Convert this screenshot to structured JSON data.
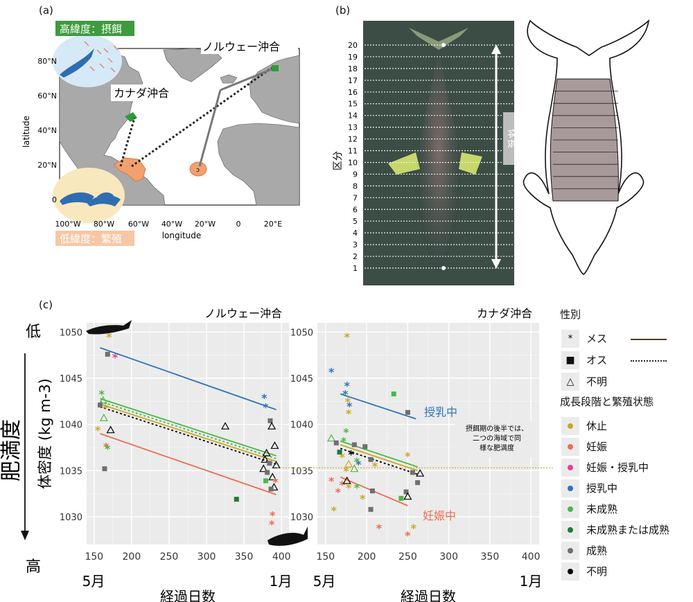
{
  "panel_labels": {
    "a": "(a)",
    "b": "(b)",
    "c": "(c)"
  },
  "map": {
    "high_lat_label": "高緯度：摂餌",
    "low_lat_label": "低緯度：繁殖",
    "norway_label": "ノルウェー沖合",
    "canada_label": "カナダ沖合",
    "ylabel": "latitude",
    "xlabel": "longitude",
    "lat_ticks": [
      "80°N",
      "60°N",
      "40°N",
      "20°N",
      "0"
    ],
    "lon_ticks": [
      "100°W",
      "80°W",
      "60°W",
      "40°W",
      "20°W",
      "0",
      "20°E"
    ],
    "colors": {
      "ocean": "#ffffff",
      "land": "#a9a9a9",
      "feeding": "#2e9b3a",
      "breeding": "#f1a070"
    }
  },
  "photo": {
    "section_label": "区分",
    "segments": [
      "1",
      "2",
      "3",
      "4",
      "5",
      "6",
      "7",
      "8",
      "9",
      "10",
      "11",
      "12",
      "13",
      "14",
      "15",
      "16",
      "17",
      "18",
      "19",
      "20"
    ],
    "body_length_label": "体長"
  },
  "chart_data": [
    {
      "type": "scatter",
      "title": "ノルウェー沖合",
      "xlabel": "経過日数",
      "ylabel": "体密度 (kg m-3)",
      "xlim": [
        140,
        410
      ],
      "ylim": [
        1027,
        1051
      ],
      "xticks": [
        150,
        200,
        250,
        300,
        350,
        400
      ],
      "yticks": [
        1030,
        1035,
        1040,
        1045,
        1050
      ],
      "month_labels": {
        "start": "5月",
        "end": "1月"
      },
      "grid": true,
      "lines": [
        {
          "group": "授乳中",
          "sex": "メス",
          "x": [
            158,
            393
          ],
          "y": [
            1048.3,
            1041.6
          ]
        },
        {
          "group": "未成熟",
          "sex": "メス",
          "x": [
            158,
            393
          ],
          "y": [
            1042.8,
            1036.6
          ]
        },
        {
          "group": "未成熟",
          "sex": "オス",
          "x": [
            158,
            393
          ],
          "y": [
            1042.5,
            1036.3
          ]
        },
        {
          "group": "休止",
          "sex": "メス",
          "x": [
            158,
            393
          ],
          "y": [
            1042.2,
            1036.0
          ]
        },
        {
          "group": "不明",
          "sex": "オス",
          "x": [
            158,
            393
          ],
          "y": [
            1041.9,
            1035.7
          ]
        },
        {
          "group": "妊娠",
          "sex": "メス",
          "x": [
            158,
            393
          ],
          "y": [
            1039.0,
            1032.4
          ]
        }
      ],
      "points": [
        {
          "x": 170,
          "y": 1049.5,
          "group": "休止",
          "shape": "メス"
        },
        {
          "x": 168,
          "y": 1047.6,
          "group": "成熟",
          "shape": "オス"
        },
        {
          "x": 178,
          "y": 1047.3,
          "group": "妊娠・授乳中",
          "shape": "メス"
        },
        {
          "x": 160,
          "y": 1043.3,
          "group": "未成熟",
          "shape": "メス"
        },
        {
          "x": 162,
          "y": 1042.6,
          "group": "未成熟",
          "shape": "不明"
        },
        {
          "x": 158,
          "y": 1042.1,
          "group": "成熟",
          "shape": "オス"
        },
        {
          "x": 165,
          "y": 1041.8,
          "group": "休止",
          "shape": "メス"
        },
        {
          "x": 163,
          "y": 1040.7,
          "group": "未成熟",
          "shape": "不明"
        },
        {
          "x": 155,
          "y": 1039.4,
          "group": "休止",
          "shape": "メス"
        },
        {
          "x": 172,
          "y": 1039.4,
          "group": "不明",
          "shape": "不明"
        },
        {
          "x": 166,
          "y": 1037.6,
          "group": "妊娠",
          "shape": "メス"
        },
        {
          "x": 168,
          "y": 1037.4,
          "group": "未成熟",
          "shape": "メス"
        },
        {
          "x": 164,
          "y": 1035.2,
          "group": "成熟",
          "shape": "オス"
        },
        {
          "x": 325,
          "y": 1039.8,
          "group": "不明",
          "shape": "不明"
        },
        {
          "x": 340,
          "y": 1031.9,
          "group": "未成熟または成熟",
          "shape": "オス"
        },
        {
          "x": 377,
          "y": 1042.9,
          "group": "授乳中",
          "shape": "メス"
        },
        {
          "x": 379,
          "y": 1041.9,
          "group": "授乳中",
          "shape": "メス"
        },
        {
          "x": 385,
          "y": 1040.4,
          "group": "成熟",
          "shape": "オス"
        },
        {
          "x": 387,
          "y": 1039.8,
          "group": "不明",
          "shape": "不明"
        },
        {
          "x": 391,
          "y": 1037.7,
          "group": "不明",
          "shape": "不明"
        },
        {
          "x": 380,
          "y": 1036.9,
          "group": "不明",
          "shape": "不明"
        },
        {
          "x": 378,
          "y": 1036.2,
          "group": "不明",
          "shape": "不明"
        },
        {
          "x": 384,
          "y": 1035.8,
          "group": "成熟",
          "shape": "オス"
        },
        {
          "x": 393,
          "y": 1035.6,
          "group": "不明",
          "shape": "不明"
        },
        {
          "x": 376,
          "y": 1035.2,
          "group": "不明",
          "shape": "不明"
        },
        {
          "x": 381,
          "y": 1034.8,
          "group": "成熟",
          "shape": "オス"
        },
        {
          "x": 388,
          "y": 1034.3,
          "group": "不明",
          "shape": "不明"
        },
        {
          "x": 392,
          "y": 1033.8,
          "group": "妊娠",
          "shape": "メス"
        },
        {
          "x": 379,
          "y": 1033.9,
          "group": "未成熟",
          "shape": "オス"
        },
        {
          "x": 390,
          "y": 1033.2,
          "group": "不明",
          "shape": "不明"
        },
        {
          "x": 386,
          "y": 1033.0,
          "group": "成熟",
          "shape": "オス"
        },
        {
          "x": 388,
          "y": 1030.2,
          "group": "妊娠",
          "shape": "メス"
        },
        {
          "x": 387,
          "y": 1029.2,
          "group": "妊娠",
          "shape": "メス"
        }
      ]
    },
    {
      "type": "scatter",
      "title": "カナダ沖合",
      "xlabel": "経過日数",
      "xlim": [
        140,
        410
      ],
      "ylim": [
        1027,
        1051
      ],
      "xticks": [
        150,
        200,
        250,
        300,
        350,
        400
      ],
      "yticks": [
        1030,
        1035,
        1040,
        1045,
        1050
      ],
      "month_labels": {
        "start": "5月",
        "end": "1月"
      },
      "grid": true,
      "lines": [
        {
          "group": "授乳中",
          "sex": "メス",
          "x": [
            168,
            260
          ],
          "y": [
            1043.3,
            1040.6
          ]
        },
        {
          "group": "未成熟",
          "sex": "メス",
          "x": [
            168,
            262
          ],
          "y": [
            1038.2,
            1035.4
          ]
        },
        {
          "group": "休止",
          "sex": "メス",
          "x": [
            168,
            262
          ],
          "y": [
            1037.8,
            1035.0
          ]
        },
        {
          "group": "不明",
          "sex": "オス",
          "x": [
            168,
            262
          ],
          "y": [
            1037.4,
            1034.6
          ]
        },
        {
          "group": "妊娠",
          "sex": "メス",
          "x": [
            168,
            250
          ],
          "y": [
            1034.3,
            1031.2
          ]
        }
      ],
      "labels": [
        {
          "text": "授乳中",
          "group": "授乳中"
        },
        {
          "text": "妊娠中",
          "group": "妊娠"
        }
      ],
      "annotation": "摂餌期の後半では、二つの海域で同様な肥満度",
      "points": [
        {
          "x": 176,
          "y": 1049.5,
          "group": "休止",
          "shape": "メス"
        },
        {
          "x": 157,
          "y": 1045.7,
          "group": "授乳中",
          "shape": "メス"
        },
        {
          "x": 176,
          "y": 1044.2,
          "group": "授乳中",
          "shape": "メス"
        },
        {
          "x": 174,
          "y": 1043.3,
          "group": "授乳中",
          "shape": "メス"
        },
        {
          "x": 233,
          "y": 1043.3,
          "group": "未成熟",
          "shape": "オス"
        },
        {
          "x": 177,
          "y": 1042.5,
          "group": "休止",
          "shape": "メス"
        },
        {
          "x": 179,
          "y": 1042.0,
          "group": "授乳中",
          "shape": "メス"
        },
        {
          "x": 178,
          "y": 1041.2,
          "group": "休止",
          "shape": "メス"
        },
        {
          "x": 250,
          "y": 1041.3,
          "group": "成熟",
          "shape": "オス"
        },
        {
          "x": 175,
          "y": 1039.2,
          "group": "未成熟",
          "shape": "メス"
        },
        {
          "x": 157,
          "y": 1038.5,
          "group": "未成熟",
          "shape": "不明"
        },
        {
          "x": 163,
          "y": 1038.0,
          "group": "成熟",
          "shape": "オス"
        },
        {
          "x": 172,
          "y": 1038.2,
          "group": "未成熟",
          "shape": "メス"
        },
        {
          "x": 185,
          "y": 1037.8,
          "group": "成熟",
          "shape": "オス"
        },
        {
          "x": 198,
          "y": 1037.6,
          "group": "成熟",
          "shape": "オス"
        },
        {
          "x": 167,
          "y": 1037.0,
          "group": "未成熟または成熟",
          "shape": "オス"
        },
        {
          "x": 181,
          "y": 1036.8,
          "group": "不明",
          "shape": "メス"
        },
        {
          "x": 170,
          "y": 1036.5,
          "group": "休止",
          "shape": "メス"
        },
        {
          "x": 188,
          "y": 1036.0,
          "group": "未成熟",
          "shape": "メス"
        },
        {
          "x": 205,
          "y": 1036.2,
          "group": "成熟",
          "shape": "オス"
        },
        {
          "x": 250,
          "y": 1036.6,
          "group": "休止",
          "shape": "メス"
        },
        {
          "x": 178,
          "y": 1035.7,
          "group": "休止",
          "shape": "不明"
        },
        {
          "x": 190,
          "y": 1035.7,
          "group": "授乳中",
          "shape": "メス"
        },
        {
          "x": 210,
          "y": 1035.5,
          "group": "休止",
          "shape": "メス"
        },
        {
          "x": 175,
          "y": 1035.0,
          "group": "休止",
          "shape": "メス"
        },
        {
          "x": 185,
          "y": 1035.2,
          "group": "未成熟",
          "shape": "不明"
        },
        {
          "x": 256,
          "y": 1034.8,
          "group": "成熟",
          "shape": "オス"
        },
        {
          "x": 265,
          "y": 1034.7,
          "group": "不明",
          "shape": "不明"
        },
        {
          "x": 157,
          "y": 1033.9,
          "group": "妊娠",
          "shape": "メス"
        },
        {
          "x": 170,
          "y": 1033.5,
          "group": "妊娠",
          "shape": "メス"
        },
        {
          "x": 176,
          "y": 1033.9,
          "group": "不明",
          "shape": "不明"
        },
        {
          "x": 262,
          "y": 1033.7,
          "group": "成熟",
          "shape": "オス"
        },
        {
          "x": 178,
          "y": 1033.2,
          "group": "休止",
          "shape": "メス"
        },
        {
          "x": 188,
          "y": 1033.2,
          "group": "未成熟",
          "shape": "メス"
        },
        {
          "x": 165,
          "y": 1032.7,
          "group": "妊娠",
          "shape": "メス"
        },
        {
          "x": 207,
          "y": 1032.8,
          "group": "成熟",
          "shape": "オス"
        },
        {
          "x": 248,
          "y": 1032.7,
          "group": "成熟",
          "shape": "オス"
        },
        {
          "x": 242,
          "y": 1032.0,
          "group": "未成熟",
          "shape": "オス"
        },
        {
          "x": 250,
          "y": 1032.2,
          "group": "不明",
          "shape": "不明"
        },
        {
          "x": 195,
          "y": 1032.0,
          "group": "休止",
          "shape": "メス"
        },
        {
          "x": 160,
          "y": 1030.7,
          "group": "休止",
          "shape": "メス"
        },
        {
          "x": 205,
          "y": 1030.8,
          "group": "成熟",
          "shape": "オス"
        },
        {
          "x": 215,
          "y": 1028.8,
          "group": "妊娠",
          "shape": "メス"
        },
        {
          "x": 257,
          "y": 1028.8,
          "group": "休止",
          "shape": "メス"
        },
        {
          "x": 250,
          "y": 1028.0,
          "group": "妊娠",
          "shape": "メス"
        }
      ]
    }
  ],
  "fatness_axis": {
    "low": "低",
    "high": "高",
    "label": "肥満度"
  },
  "legend": {
    "sex_title": "性別",
    "sex_items": [
      {
        "label": "メス",
        "symbol": "*",
        "line": "solid"
      },
      {
        "label": "オス",
        "symbol": "■",
        "line": "dotted"
      },
      {
        "label": "不明",
        "symbol": "△",
        "line": "none"
      }
    ],
    "stage_title": "成長段階と繁殖状態",
    "stage_items": [
      {
        "label": "休止",
        "color": "#c9a823"
      },
      {
        "label": "妊娠",
        "color": "#ef6b4f"
      },
      {
        "label": "妊娠・授乳中",
        "color": "#e0419a"
      },
      {
        "label": "授乳中",
        "color": "#2f74b8"
      },
      {
        "label": "未成熟",
        "color": "#4bb748"
      },
      {
        "label": "未成熟または成熟",
        "color": "#1d7a3a"
      },
      {
        "label": "成熟",
        "color": "#6f6f6f"
      },
      {
        "label": "不明",
        "color": "#000000"
      }
    ]
  }
}
